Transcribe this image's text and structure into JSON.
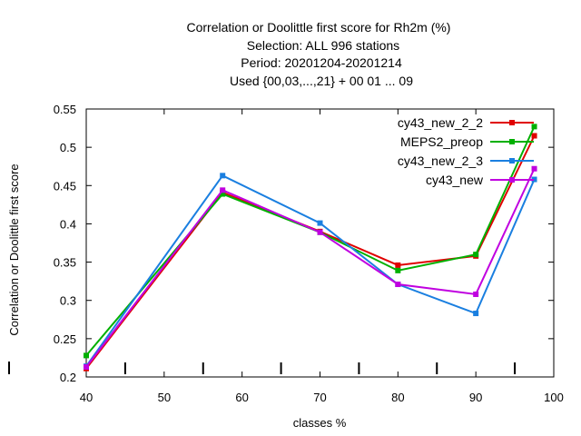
{
  "chart_data": {
    "type": "line",
    "title_lines": [
      "Correlation or Doolittle first score  for Rh2m (%)",
      "Selection: ALL    996 stations",
      "Period: 20201204-20201214",
      "Used {00,03,...,21} + 00 01 ... 09"
    ],
    "xlabel": "classes %",
    "ylabel": "Correlation or Doolittle first score",
    "xlim": [
      40,
      100
    ],
    "ylim": [
      0.2,
      0.55
    ],
    "x_ticks": [
      40,
      50,
      60,
      70,
      80,
      90,
      100
    ],
    "x_tick_labels": [
      "40",
      "50",
      "60",
      "70",
      "80",
      "90",
      "100"
    ],
    "y_ticks": [
      0.2,
      0.25,
      0.3,
      0.35,
      0.4,
      0.45,
      0.5,
      0.55
    ],
    "y_tick_labels": [
      "0.2",
      "0.25",
      "0.3",
      "0.35",
      "0.4",
      "0.45",
      "0.5",
      "0.55"
    ],
    "x_minor_ticks": [
      45,
      55,
      65,
      75,
      85,
      95
    ],
    "grid": false,
    "legend_position": "top-right",
    "series": [
      {
        "name": "cy43_new_2_2",
        "color": "#e00000",
        "x": [
          40,
          57.5,
          70,
          80,
          90,
          97.5
        ],
        "y": [
          0.211,
          0.441,
          0.39,
          0.346,
          0.358,
          0.515
        ]
      },
      {
        "name": "MEPS2_preop",
        "color": "#00b000",
        "x": [
          40,
          57.5,
          70,
          80,
          90,
          97.5
        ],
        "y": [
          0.228,
          0.439,
          0.389,
          0.339,
          0.36,
          0.527
        ]
      },
      {
        "name": "cy43_new_2_3",
        "color": "#1a7fe0",
        "x": [
          40,
          57.5,
          70,
          80,
          90,
          97.5
        ],
        "y": [
          0.214,
          0.463,
          0.401,
          0.321,
          0.283,
          0.458
        ]
      },
      {
        "name": "cy43_new",
        "color": "#c000e0",
        "x": [
          40,
          57.5,
          70,
          80,
          90,
          97.5
        ],
        "y": [
          0.213,
          0.444,
          0.389,
          0.321,
          0.308,
          0.472
        ]
      }
    ]
  }
}
